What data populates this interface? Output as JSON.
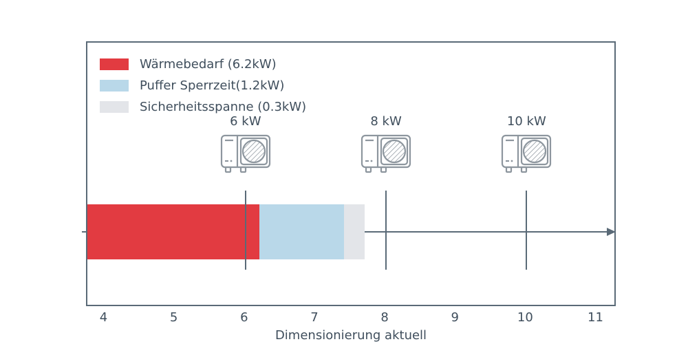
{
  "axis": {
    "xlabel": "Dimensionierung aktuell",
    "text_color": "#3f4e5c",
    "spine_color": "#5a6a77",
    "icon_color": "#8d969e"
  },
  "chart_data": {
    "type": "bar",
    "orientation": "horizontal",
    "title": "",
    "xlabel": "Dimensionierung aktuell",
    "ylabel": "",
    "xlim": [
      3.75,
      11.25
    ],
    "x_ticks": [
      4,
      5,
      6,
      7,
      8,
      9,
      10,
      11
    ],
    "grid": false,
    "legend_position": "upper-left",
    "segments": [
      {
        "name": "Wärmebedarf",
        "value_kw": 6.2,
        "start": 3.75,
        "end": 6.2,
        "color": "#e23b41"
      },
      {
        "name": "Puffer Sperrzeit",
        "value_kw": 1.2,
        "start": 6.2,
        "end": 7.4,
        "color": "#b9d8e9"
      },
      {
        "name": "Sicherheitsspanne",
        "value_kw": 0.3,
        "start": 7.4,
        "end": 7.7,
        "color": "#e3e5e9"
      }
    ],
    "markers": [
      {
        "label": "6 kW",
        "x": 6
      },
      {
        "label": "8 kW",
        "x": 8
      },
      {
        "label": "10 kW",
        "x": 10
      }
    ],
    "legend": [
      {
        "label": "Wärmebedarf (6.2kW)",
        "color": "#e23b41"
      },
      {
        "label": "Puffer Sperrzeit(1.2kW)",
        "color": "#b9d8e9"
      },
      {
        "label": "Sicherheitsspanne (0.3kW)",
        "color": "#e3e5e9"
      }
    ]
  }
}
